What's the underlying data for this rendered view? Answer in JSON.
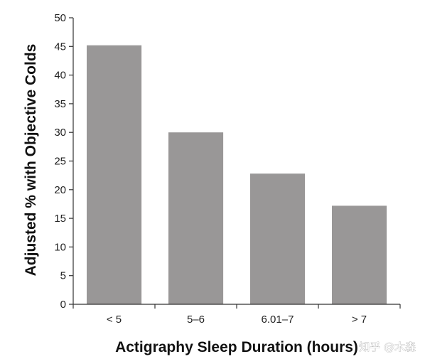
{
  "chart_data": {
    "type": "bar",
    "categories": [
      "< 5",
      "5–6",
      "6.01–7",
      "> 7"
    ],
    "values": [
      45.2,
      30.0,
      22.8,
      17.2
    ],
    "xlabel": "Actigraphy Sleep Duration (hours)",
    "ylabel": "Adjusted % with Objective Colds",
    "ylim": [
      0,
      50
    ],
    "yticks": [
      0,
      5,
      10,
      15,
      20,
      25,
      30,
      35,
      40,
      45,
      50
    ],
    "grid": false,
    "legend": "none",
    "bar_color": "#999797"
  },
  "watermark": "知乎 @木森"
}
